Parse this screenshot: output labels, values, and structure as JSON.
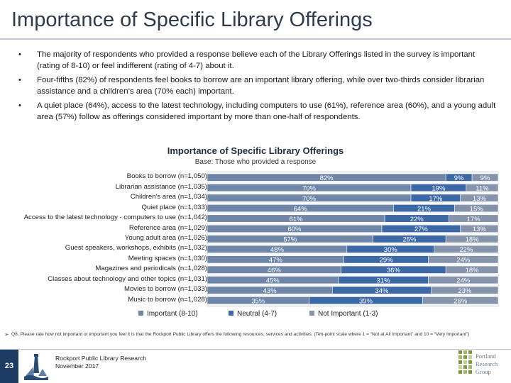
{
  "slide": {
    "title": "Importance of Specific Library Offerings",
    "bullets": [
      "The majority of respondents who provided a response believe each of the Library Offerings listed in the survey is important (rating of 8-10) or feel indifferent (rating of 4-7) about it.",
      "Four-fifths (82%) of respondents feel books to borrow are an important library offering, while over two-thirds consider librarian assistance and a children’s area (70% each) important.",
      "A quiet place (64%), access to the latest technology, including computers to use (61%), reference area (60%), and a young adult area (57%) follow as offerings considered important by more than one-half of respondents."
    ],
    "bullet_marker": "•"
  },
  "chart_data": {
    "type": "bar",
    "orientation": "horizontal",
    "stacked": true,
    "title": "Importance of Specific Library Offerings",
    "subtitle": "Base: Those who provided a response",
    "categories": [
      "Books to borrow (n=1,050)",
      "Librarian assistance (n=1,035)",
      "Children's area (n=1,034)",
      "Quiet place (n=1,033)",
      "Access to the latest technology - computers to use (n=1,042)",
      "Reference area (n=1,029)",
      "Young adult area (n=1,026)",
      "Guest speakers, workshops, exhibits (n=1,032)",
      "Meeting spaces (n=1,030)",
      "Magazines and periodicals (n=1,028)",
      "Classes about technology and other topics (n=1,031)",
      "Movies to borrow (n=1,033)",
      "Music to borrow (n=1,028)"
    ],
    "series": [
      {
        "name": "Important (8-10)",
        "color": "#6f86a8",
        "values": [
          82,
          70,
          70,
          64,
          61,
          60,
          57,
          48,
          47,
          46,
          45,
          43,
          35
        ]
      },
      {
        "name": "Neutral (4-7)",
        "color": "#3c68a6",
        "values": [
          9,
          19,
          17,
          21,
          22,
          27,
          25,
          30,
          29,
          36,
          31,
          34,
          39
        ]
      },
      {
        "name": "Not Important (1-3)",
        "color": "#8593ab",
        "values": [
          9,
          11,
          13,
          15,
          17,
          13,
          18,
          22,
          24,
          18,
          24,
          23,
          26
        ]
      }
    ],
    "value_suffix": "%",
    "xlim": [
      0,
      100
    ],
    "legend_position": "bottom"
  },
  "footnote": {
    "marker": "➢",
    "text": "Q8. Please rate how not important or important you feel it is that the Rockport Public Library offers the following resources, services and activities. (Ten-point scale where 1 = “Not at All Important” and 10 = “Very Important”)"
  },
  "footer": {
    "page_number": "23",
    "org_line": "Rockport Public Library Research",
    "date_line": "November 2017",
    "logo_word_1": "Portland",
    "logo_word_2": "Research",
    "logo_word_3": "Group"
  }
}
